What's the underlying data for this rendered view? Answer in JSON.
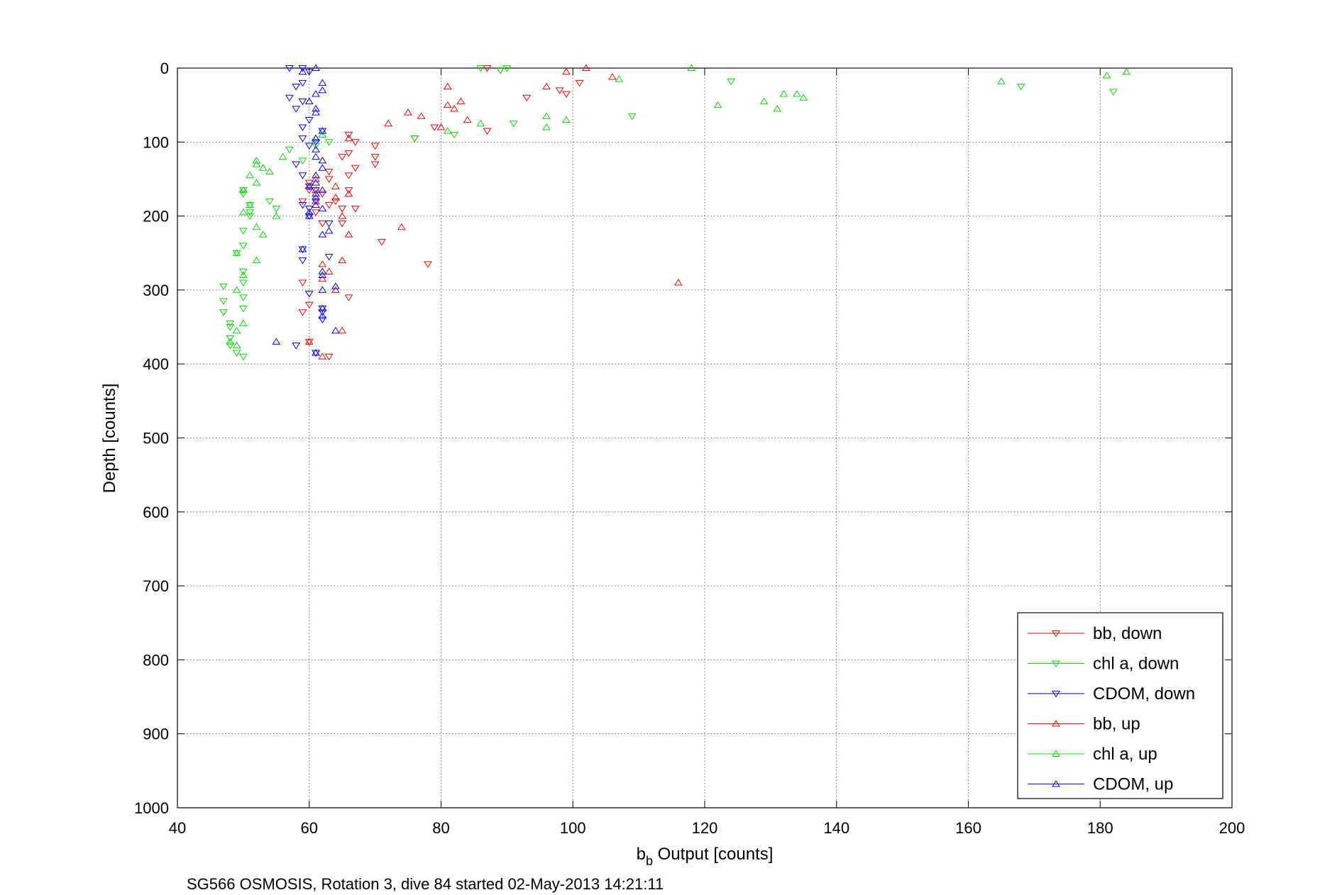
{
  "chart_data": {
    "type": "scatter",
    "title": "",
    "xlabel": {
      "main": "b",
      "sub": "b",
      "rest": " Output [counts]"
    },
    "ylabel": "Depth [counts]",
    "caption": "SG566 OSMOSIS, Rotation 3, dive 84 started 02-May-2013 14:21:11",
    "xlim": [
      40,
      200
    ],
    "ylim": [
      0,
      1000
    ],
    "y_reversed": true,
    "xticks": [
      "40",
      "60",
      "80",
      "100",
      "120",
      "140",
      "160",
      "180",
      "200"
    ],
    "yticks": [
      "0",
      "100",
      "200",
      "300",
      "400",
      "500",
      "600",
      "700",
      "800",
      "900",
      "1000"
    ],
    "grid": true,
    "legend_position": "bottom-right",
    "series": [
      {
        "name": "bb, down",
        "color": "#ff0000",
        "marker": "triangle-down",
        "points": [
          [
            87,
            0
          ],
          [
            89,
            3
          ],
          [
            101,
            20
          ],
          [
            98,
            30
          ],
          [
            99,
            35
          ],
          [
            93,
            40
          ],
          [
            87,
            85
          ],
          [
            76,
            95
          ],
          [
            79,
            80
          ],
          [
            70,
            105
          ],
          [
            66,
            90
          ],
          [
            67,
            100
          ],
          [
            70,
            120
          ],
          [
            66,
            115
          ],
          [
            65,
            120
          ],
          [
            70,
            130
          ],
          [
            67,
            135
          ],
          [
            63,
            140
          ],
          [
            66,
            145
          ],
          [
            63,
            150
          ],
          [
            60,
            155
          ],
          [
            66,
            165
          ],
          [
            62,
            170
          ],
          [
            60,
            165
          ],
          [
            64,
            180
          ],
          [
            59,
            180
          ],
          [
            63,
            185
          ],
          [
            65,
            190
          ],
          [
            67,
            190
          ],
          [
            61,
            195
          ],
          [
            65,
            210
          ],
          [
            62,
            210
          ],
          [
            71,
            235
          ],
          [
            78,
            265
          ],
          [
            59,
            290
          ],
          [
            66,
            310
          ],
          [
            59,
            330
          ],
          [
            60,
            320
          ],
          [
            60,
            370
          ],
          [
            63,
            390
          ],
          [
            61,
            385
          ]
        ]
      },
      {
        "name": "chl a, down",
        "color": "#00dd00",
        "marker": "triangle-down",
        "points": [
          [
            86,
            0
          ],
          [
            89,
            3
          ],
          [
            90,
            0
          ],
          [
            124,
            18
          ],
          [
            168,
            25
          ],
          [
            182,
            32
          ],
          [
            109,
            65
          ],
          [
            91,
            75
          ],
          [
            82,
            90
          ],
          [
            76,
            95
          ],
          [
            63,
            100
          ],
          [
            61,
            105
          ],
          [
            57,
            110
          ],
          [
            59,
            125
          ],
          [
            50,
            165
          ],
          [
            50,
            170
          ],
          [
            51,
            185
          ],
          [
            55,
            190
          ],
          [
            51,
            195
          ],
          [
            54,
            180
          ],
          [
            51,
            200
          ],
          [
            50,
            220
          ],
          [
            50,
            240
          ],
          [
            49,
            250
          ],
          [
            50,
            275
          ],
          [
            50,
            290
          ],
          [
            47,
            295
          ],
          [
            50,
            310
          ],
          [
            47,
            315
          ],
          [
            50,
            325
          ],
          [
            47,
            330
          ],
          [
            48,
            345
          ],
          [
            48,
            350
          ],
          [
            48,
            365
          ],
          [
            48,
            375
          ],
          [
            49,
            385
          ],
          [
            50,
            390
          ]
        ]
      },
      {
        "name": "CDOM, down",
        "color": "#0000ff",
        "marker": "triangle-down",
        "points": [
          [
            57,
            0
          ],
          [
            59,
            0
          ],
          [
            60,
            5
          ],
          [
            58,
            25
          ],
          [
            59,
            20
          ],
          [
            57,
            40
          ],
          [
            59,
            45
          ],
          [
            58,
            55
          ],
          [
            60,
            70
          ],
          [
            59,
            80
          ],
          [
            62,
            85
          ],
          [
            59,
            95
          ],
          [
            61,
            100
          ],
          [
            60,
            105
          ],
          [
            58,
            130
          ],
          [
            59,
            145
          ],
          [
            60,
            160
          ],
          [
            61,
            165
          ],
          [
            61,
            180
          ],
          [
            59,
            185
          ],
          [
            60,
            190
          ],
          [
            60,
            200
          ],
          [
            63,
            210
          ],
          [
            59,
            245
          ],
          [
            63,
            255
          ],
          [
            59,
            260
          ],
          [
            60,
            305
          ],
          [
            62,
            325
          ],
          [
            62,
            330
          ],
          [
            62,
            340
          ],
          [
            58,
            375
          ],
          [
            61,
            385
          ]
        ]
      }
    ],
    "series_up": [
      {
        "name": "bb, up",
        "color": "#ff0000",
        "marker": "triangle-up",
        "points": [
          [
            102,
            0
          ],
          [
            99,
            5
          ],
          [
            106,
            12
          ],
          [
            96,
            25
          ],
          [
            81,
            25
          ],
          [
            83,
            45
          ],
          [
            81,
            50
          ],
          [
            82,
            55
          ],
          [
            75,
            60
          ],
          [
            77,
            65
          ],
          [
            84,
            70
          ],
          [
            72,
            75
          ],
          [
            80,
            80
          ],
          [
            66,
            95
          ],
          [
            61,
            150
          ],
          [
            60,
            160
          ],
          [
            61,
            165
          ],
          [
            64,
            160
          ],
          [
            66,
            170
          ],
          [
            64,
            175
          ],
          [
            61,
            180
          ],
          [
            65,
            200
          ],
          [
            66,
            225
          ],
          [
            74,
            215
          ],
          [
            65,
            260
          ],
          [
            62,
            265
          ],
          [
            63,
            275
          ],
          [
            62,
            285
          ],
          [
            116,
            290
          ],
          [
            64,
            300
          ],
          [
            60,
            370
          ],
          [
            62,
            390
          ],
          [
            65,
            355
          ]
        ]
      },
      {
        "name": "chl a, up",
        "color": "#00dd00",
        "marker": "triangle-up",
        "points": [
          [
            118,
            0
          ],
          [
            184,
            5
          ],
          [
            181,
            10
          ],
          [
            165,
            18
          ],
          [
            107,
            15
          ],
          [
            134,
            35
          ],
          [
            135,
            40
          ],
          [
            132,
            35
          ],
          [
            129,
            45
          ],
          [
            122,
            50
          ],
          [
            131,
            55
          ],
          [
            96,
            65
          ],
          [
            99,
            70
          ],
          [
            86,
            75
          ],
          [
            96,
            80
          ],
          [
            81,
            85
          ],
          [
            62,
            90
          ],
          [
            61,
            95
          ],
          [
            56,
            120
          ],
          [
            52,
            125
          ],
          [
            54,
            140
          ],
          [
            52,
            130
          ],
          [
            53,
            135
          ],
          [
            51,
            145
          ],
          [
            52,
            155
          ],
          [
            50,
            165
          ],
          [
            51,
            185
          ],
          [
            50,
            195
          ],
          [
            55,
            200
          ],
          [
            52,
            215
          ],
          [
            53,
            225
          ],
          [
            49,
            250
          ],
          [
            52,
            260
          ],
          [
            50,
            280
          ],
          [
            49,
            300
          ],
          [
            50,
            345
          ],
          [
            49,
            355
          ],
          [
            48,
            370
          ],
          [
            49,
            375
          ]
        ]
      },
      {
        "name": "CDOM, up",
        "color": "#0000ff",
        "marker": "triangle-up",
        "points": [
          [
            61,
            0
          ],
          [
            59,
            5
          ],
          [
            62,
            20
          ],
          [
            62,
            30
          ],
          [
            61,
            35
          ],
          [
            60,
            45
          ],
          [
            61,
            55
          ],
          [
            61,
            60
          ],
          [
            62,
            85
          ],
          [
            61,
            95
          ],
          [
            61,
            110
          ],
          [
            61,
            120
          ],
          [
            62,
            125
          ],
          [
            62,
            135
          ],
          [
            61,
            145
          ],
          [
            61,
            155
          ],
          [
            60,
            160
          ],
          [
            62,
            165
          ],
          [
            61,
            170
          ],
          [
            61,
            175
          ],
          [
            61,
            185
          ],
          [
            62,
            190
          ],
          [
            60,
            195
          ],
          [
            60,
            200
          ],
          [
            63,
            220
          ],
          [
            62,
            225
          ],
          [
            59,
            245
          ],
          [
            62,
            275
          ],
          [
            62,
            280
          ],
          [
            64,
            295
          ],
          [
            62,
            300
          ],
          [
            62,
            325
          ],
          [
            62,
            335
          ],
          [
            55,
            370
          ],
          [
            64,
            355
          ],
          [
            61,
            385
          ]
        ]
      }
    ]
  }
}
